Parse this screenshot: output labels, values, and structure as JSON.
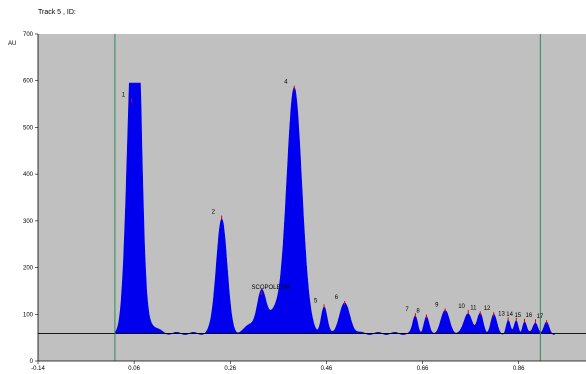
{
  "header": {
    "title": "Track  5 , ID:"
  },
  "chart_data": {
    "type": "area",
    "ylabel": "AU",
    "xlim": [
      -0.14,
      1.0
    ],
    "ylim": [
      0,
      700
    ],
    "x_ticks": [
      "-0.14",
      "0.06",
      "0.26",
      "0.46",
      "0.66",
      "0.86"
    ],
    "x_tick_values": [
      -0.14,
      0.06,
      0.26,
      0.46,
      0.66,
      0.86
    ],
    "y_ticks": [
      "0",
      "100",
      "200",
      "300",
      "400",
      "500",
      "600",
      "700"
    ],
    "y_tick_values": [
      0,
      100,
      200,
      300,
      400,
      500,
      600,
      700
    ],
    "baseline": 59,
    "start_line_x": 0.02,
    "end_line_x": 0.905,
    "peaks": [
      {
        "label": "1",
        "x": 0.055,
        "y": 555
      },
      {
        "label": "2",
        "x": 0.242,
        "y": 305
      },
      {
        "label": "SCOPOLETIN",
        "x": 0.325,
        "y": 143
      },
      {
        "label": "4",
        "x": 0.393,
        "y": 583
      },
      {
        "label": "5",
        "x": 0.455,
        "y": 115
      },
      {
        "label": "6",
        "x": 0.498,
        "y": 122
      },
      {
        "label": "7",
        "x": 0.645,
        "y": 96
      },
      {
        "label": "8",
        "x": 0.668,
        "y": 93
      },
      {
        "label": "9",
        "x": 0.707,
        "y": 106
      },
      {
        "label": "10",
        "x": 0.755,
        "y": 103
      },
      {
        "label": "11",
        "x": 0.78,
        "y": 100
      },
      {
        "label": "12",
        "x": 0.808,
        "y": 98
      },
      {
        "label": "13",
        "x": 0.838,
        "y": 87
      },
      {
        "label": "14",
        "x": 0.855,
        "y": 86
      },
      {
        "label": "15",
        "x": 0.872,
        "y": 84
      },
      {
        "label": "16",
        "x": 0.895,
        "y": 83
      },
      {
        "label": "17",
        "x": 0.918,
        "y": 81
      }
    ],
    "colors": {
      "fill": "#0000ee",
      "plot_bg": "#c0c0c0",
      "baseline": "#000000",
      "tick_mark": "#dd0000",
      "vertical_line": "#2e8b57"
    }
  }
}
